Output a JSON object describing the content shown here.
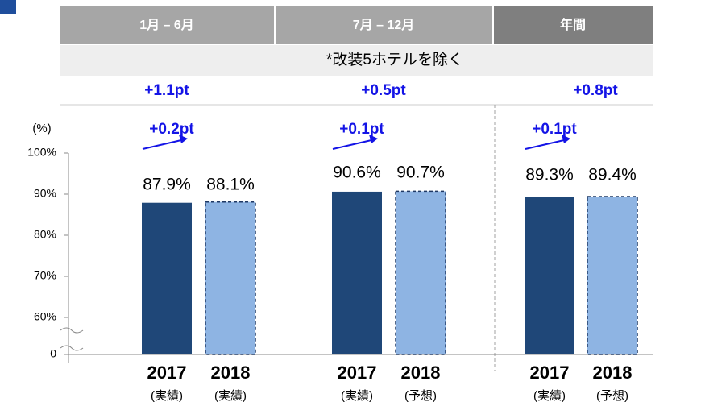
{
  "chart_data": {
    "type": "bar",
    "categories": [
      "1月 – 6月",
      "7月 – 12月",
      "年間"
    ],
    "note": "*改装5ホテルを除く",
    "excluded_diffs": [
      "+1.1pt",
      "+0.5pt",
      "+0.8pt"
    ],
    "diffs": [
      "+0.2pt",
      "+0.1pt",
      "+0.1pt"
    ],
    "y_label": "(%)",
    "series": [
      {
        "name": "2017",
        "color": "#1f4778",
        "sublabels": [
          "(実績)",
          "(実績)",
          "(実績)"
        ],
        "values": [
          87.9,
          90.6,
          89.3
        ],
        "value_labels": [
          "87.9%",
          "90.6%",
          "89.3%"
        ]
      },
      {
        "name": "2018",
        "color": "#8eb4e3",
        "sublabels": [
          "(実績)",
          "(予想)",
          "(予想)"
        ],
        "values": [
          88.1,
          90.7,
          89.4
        ],
        "value_labels": [
          "88.1%",
          "90.7%",
          "89.4%"
        ]
      }
    ],
    "ylim": [
      0,
      100
    ],
    "y_break": [
      0,
      60
    ],
    "yticks": [
      {
        "value": 0,
        "label": "0"
      },
      {
        "value": 60,
        "label": "60%"
      },
      {
        "value": 70,
        "label": "70%"
      },
      {
        "value": 80,
        "label": "80%"
      },
      {
        "value": 90,
        "label": "90%"
      },
      {
        "value": 100,
        "label": "100%"
      }
    ]
  }
}
